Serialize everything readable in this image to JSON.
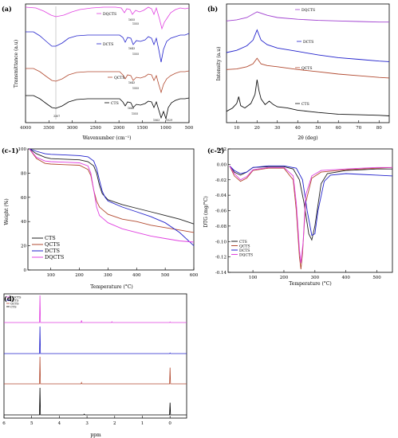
{
  "panels": {
    "a": {
      "label": "(a)"
    },
    "b": {
      "label": "(b)"
    },
    "c1": {
      "label": "(c-1)"
    },
    "c2": {
      "label": "(c-2)"
    },
    "d": {
      "label": "(d)"
    }
  },
  "chart_data": [
    {
      "id": "a",
      "type": "line",
      "title": "(a)",
      "xlabel": "Wavenumber (cm⁻¹)",
      "ylabel": "Transmittance (a.u)",
      "xlim": [
        4000,
        500
      ],
      "x_ticks": [
        "4000",
        "3500",
        "3000",
        "2500",
        "2000",
        "1500",
        "1000",
        "500"
      ],
      "grid": false,
      "series": [
        {
          "name": "DQCTS",
          "color": "#e040e0"
        },
        {
          "name": "DCTS",
          "color": "#2222cc"
        },
        {
          "name": "QCTS",
          "color": "#b24a30"
        },
        {
          "name": "CTS",
          "color": "#000000"
        }
      ],
      "annotations": [
        "3307",
        "1655",
        "1555",
        "1643",
        "1555",
        "1643",
        "1555",
        "1643",
        "1555",
        "1063",
        "1029"
      ]
    },
    {
      "id": "b",
      "type": "line",
      "title": "(b)",
      "xlabel": "2θ (deg)",
      "ylabel": "Intensity (a.u)",
      "xlim": [
        5,
        85
      ],
      "x_ticks": [
        "10",
        "20",
        "30",
        "40",
        "50",
        "60",
        "70",
        "80"
      ],
      "grid": false,
      "series": [
        {
          "name": "DQCTS",
          "color": "#a040d0",
          "x": [
            5,
            10,
            15,
            20,
            25,
            30,
            40,
            50,
            60,
            70,
            80,
            85
          ],
          "y": [
            9.0,
            9.1,
            9.3,
            9.8,
            9.5,
            9.3,
            9.15,
            9.05,
            9.0,
            8.95,
            8.9,
            8.9
          ]
        },
        {
          "name": "DCTS",
          "color": "#2222cc",
          "x": [
            5,
            10,
            15,
            18,
            20,
            22,
            25,
            30,
            40,
            50,
            60,
            70,
            80,
            85
          ],
          "y": [
            6.2,
            6.4,
            6.8,
            7.3,
            8.2,
            7.3,
            6.9,
            6.6,
            6.3,
            6.0,
            5.75,
            5.6,
            5.45,
            5.4
          ]
        },
        {
          "name": "QCTS",
          "color": "#b24a30",
          "x": [
            5,
            10,
            15,
            18,
            20,
            22,
            25,
            30,
            40,
            50,
            60,
            70,
            80,
            85
          ],
          "y": [
            4.7,
            4.75,
            4.95,
            5.2,
            5.7,
            5.2,
            5.05,
            4.95,
            4.7,
            4.5,
            4.3,
            4.15,
            4.0,
            3.95
          ]
        },
        {
          "name": "CTS",
          "color": "#111111",
          "x": [
            5,
            8,
            10,
            11,
            12,
            14,
            17,
            19,
            20,
            21,
            22,
            24,
            26,
            28,
            30,
            35,
            40,
            45,
            50,
            60,
            70,
            80,
            85
          ],
          "y": [
            1.0,
            1.3,
            1.7,
            2.3,
            1.5,
            1.3,
            1.7,
            2.5,
            3.8,
            2.8,
            2.1,
            1.6,
            1.9,
            1.6,
            1.4,
            1.3,
            1.1,
            1.0,
            0.9,
            0.75,
            0.7,
            0.65,
            0.6
          ]
        }
      ],
      "ylim": [
        0,
        10.5
      ]
    },
    {
      "id": "c1",
      "type": "line",
      "title": "(c-1)",
      "xlabel": "Temperature (°C)",
      "ylabel": "Weight (%)",
      "xlim": [
        20,
        600
      ],
      "ylim": [
        0,
        100
      ],
      "x_ticks": [
        "100",
        "200",
        "300",
        "400",
        "500",
        "600"
      ],
      "y_ticks": [
        "0",
        "20",
        "40",
        "60",
        "80",
        "100"
      ],
      "grid": false,
      "legend": "bottom-left",
      "series": [
        {
          "name": "CTS",
          "color": "#222222",
          "x": [
            25,
            50,
            80,
            100,
            150,
            200,
            230,
            250,
            260,
            270,
            280,
            300,
            350,
            400,
            450,
            500,
            550,
            600
          ],
          "y": [
            100,
            96,
            93,
            92,
            91.5,
            91,
            89.5,
            86,
            80,
            70,
            63,
            58,
            54,
            51,
            48,
            45,
            42,
            38
          ]
        },
        {
          "name": "QCTS",
          "color": "#b24a30",
          "x": [
            25,
            50,
            80,
            100,
            150,
            200,
            230,
            240,
            250,
            260,
            270,
            300,
            350,
            400,
            450,
            500,
            550,
            600
          ],
          "y": [
            100,
            92,
            88,
            87.5,
            87,
            86.5,
            83,
            78,
            66,
            57,
            52,
            46,
            42,
            40,
            37,
            35,
            33,
            31
          ]
        },
        {
          "name": "DCTS",
          "color": "#2222cc",
          "x": [
            25,
            50,
            80,
            100,
            150,
            200,
            230,
            250,
            260,
            270,
            280,
            290,
            300,
            350,
            400,
            450,
            500,
            550,
            600
          ],
          "y": [
            100,
            98,
            96,
            95.5,
            95,
            94.5,
            93.5,
            90,
            84,
            74,
            65,
            60,
            57,
            52,
            48,
            44,
            39,
            31,
            20
          ]
        },
        {
          "name": "DQCTS",
          "color": "#e040e0",
          "x": [
            25,
            50,
            80,
            100,
            150,
            200,
            230,
            240,
            250,
            260,
            270,
            300,
            350,
            400,
            450,
            500,
            550,
            600
          ],
          "y": [
            100,
            93,
            90,
            89.5,
            89,
            88.5,
            86,
            80,
            66,
            52,
            45,
            39,
            34,
            31,
            28,
            26,
            24,
            23
          ]
        }
      ]
    },
    {
      "id": "c2",
      "type": "line",
      "title": "(c-2)",
      "xlabel": "Temperature (°C)",
      "ylabel": "DTG (mg/°C)",
      "xlim": [
        20,
        550
      ],
      "ylim": [
        -0.14,
        0.02
      ],
      "x_ticks": [
        "100",
        "200",
        "300",
        "400",
        "500"
      ],
      "y_ticks": [
        "0.02",
        "0.00",
        "-0.02",
        "-0.04",
        "-0.06",
        "-0.08",
        "-0.10",
        "-0.12",
        "-0.14"
      ],
      "grid": false,
      "legend": "bottom-left",
      "series": [
        {
          "name": "CTS",
          "color": "#222222",
          "x": [
            25,
            40,
            60,
            80,
            100,
            150,
            200,
            230,
            250,
            265,
            280,
            290,
            300,
            320,
            340,
            400,
            450,
            500,
            550
          ],
          "y": [
            -0.002,
            -0.01,
            -0.014,
            -0.01,
            -0.004,
            -0.003,
            -0.003,
            -0.006,
            -0.02,
            -0.05,
            -0.09,
            -0.098,
            -0.08,
            -0.025,
            -0.012,
            -0.008,
            -0.007,
            -0.006,
            -0.006
          ]
        },
        {
          "name": "QCTS",
          "color": "#b24a30",
          "x": [
            25,
            40,
            60,
            80,
            100,
            150,
            200,
            230,
            240,
            250,
            255,
            260,
            270,
            290,
            320,
            400,
            450,
            500,
            550
          ],
          "y": [
            -0.002,
            -0.015,
            -0.022,
            -0.018,
            -0.008,
            -0.005,
            -0.005,
            -0.02,
            -0.06,
            -0.12,
            -0.136,
            -0.115,
            -0.05,
            -0.018,
            -0.01,
            -0.007,
            -0.006,
            -0.005,
            -0.004
          ]
        },
        {
          "name": "DCTS",
          "color": "#2222cc",
          "x": [
            25,
            40,
            60,
            80,
            100,
            150,
            200,
            240,
            260,
            275,
            290,
            300,
            310,
            330,
            350,
            400,
            450,
            500,
            550
          ],
          "y": [
            -0.002,
            -0.008,
            -0.012,
            -0.01,
            -0.004,
            -0.002,
            -0.002,
            -0.005,
            -0.02,
            -0.06,
            -0.092,
            -0.09,
            -0.06,
            -0.022,
            -0.014,
            -0.012,
            -0.013,
            -0.014,
            -0.015
          ]
        },
        {
          "name": "DQCTS",
          "color": "#e040e0",
          "x": [
            25,
            40,
            60,
            80,
            100,
            150,
            200,
            230,
            240,
            250,
            255,
            262,
            270,
            290,
            320,
            400,
            450,
            500,
            550
          ],
          "y": [
            -0.002,
            -0.012,
            -0.02,
            -0.016,
            -0.007,
            -0.004,
            -0.004,
            -0.015,
            -0.05,
            -0.11,
            -0.128,
            -0.1,
            -0.04,
            -0.015,
            -0.008,
            -0.006,
            -0.005,
            -0.004,
            -0.004
          ]
        }
      ]
    },
    {
      "id": "d",
      "type": "line",
      "title": "(d)",
      "xlabel": "ppm",
      "xlim": [
        6,
        -0.6
      ],
      "x_ticks": [
        "6",
        "5",
        "4",
        "3",
        "2",
        "1",
        "0"
      ],
      "grid": false,
      "legend": "top-left",
      "series": [
        {
          "name": "DQCTS",
          "color": "#e040e0",
          "peaks": [
            [
              4.7,
              1.0
            ],
            [
              3.2,
              0.08
            ],
            [
              2.1,
              0.03
            ],
            [
              0.0,
              0.02
            ]
          ]
        },
        {
          "name": "DCTS",
          "color": "#2222cc",
          "peaks": [
            [
              4.7,
              1.0
            ],
            [
              0.0,
              0.02
            ]
          ]
        },
        {
          "name": "QCTS",
          "color": "#b24a30",
          "peaks": [
            [
              4.7,
              1.0
            ],
            [
              3.2,
              0.05
            ],
            [
              0.0,
              0.6
            ]
          ]
        },
        {
          "name": "CTS",
          "color": "#000000",
          "peaks": [
            [
              4.7,
              1.0
            ],
            [
              3.1,
              0.03
            ],
            [
              0.0,
              0.45
            ]
          ]
        }
      ]
    }
  ]
}
